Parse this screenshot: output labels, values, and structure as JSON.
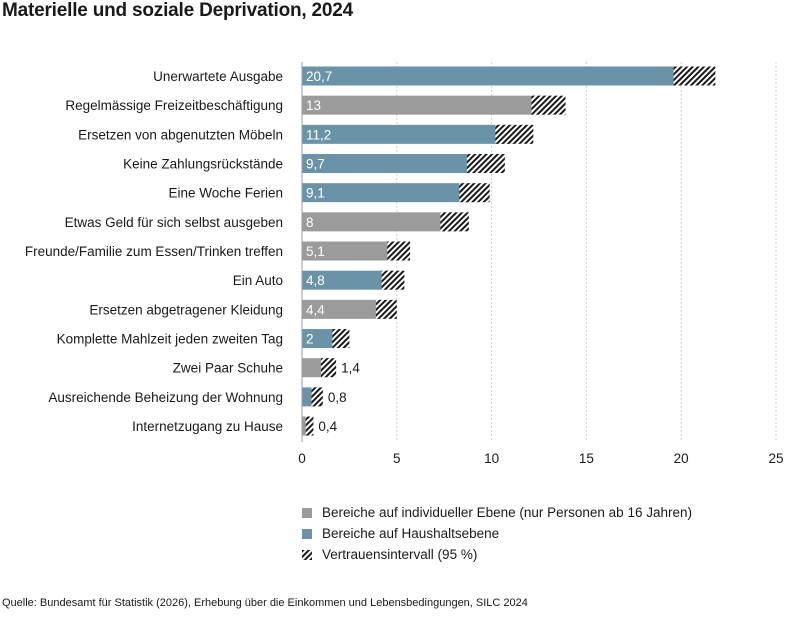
{
  "colors": {
    "individual": "#9b9b9b",
    "household": "#6b93a8",
    "grid": "#d0d0d0",
    "text": "#1a1a1a"
  },
  "legend": {
    "individual": "Bereiche auf individueller Ebene (nur Personen ab 16 Jahren)",
    "household": "Bereiche auf Haushaltsebene",
    "ci": "Vertrauensintervall (95 %)"
  },
  "source": "Quelle: Bundesamt für Statistik (2026), Erhebung über die Einkommen und Lebensbedingungen, SILC 2024",
  "chart_data": {
    "type": "bar",
    "orientation": "horizontal",
    "title": "Materielle und soziale Deprivation, 2024",
    "xlabel": "",
    "ylabel": "",
    "xlim": [
      0,
      25
    ],
    "xticks": [
      0,
      5,
      10,
      15,
      20,
      25
    ],
    "grid": true,
    "legend_position": "bottom",
    "categories": [
      "Unerwartete Ausgabe",
      "Regelmässige Freizeitbeschäftigung",
      "Ersetzen von abgenutzten Möbeln",
      "Keine Zahlungsrückstände",
      "Eine Woche Ferien",
      "Etwas Geld für sich selbst ausgeben",
      "Freunde/Familie zum Essen/Trinken treffen",
      "Ein Auto",
      "Ersetzen abgetragener Kleidung",
      "Komplette Mahlzeit jeden zweiten Tag",
      "Zwei Paar Schuhe",
      "Ausreichende Beheizung der Wohnung",
      "Internetzugang zu Hause"
    ],
    "values": [
      20.7,
      13,
      11.2,
      9.7,
      9.1,
      8,
      5.1,
      4.8,
      4.4,
      2,
      1.4,
      0.8,
      0.4
    ],
    "value_labels": [
      "20,7",
      "13",
      "11,2",
      "9,7",
      "9,1",
      "8",
      "5,1",
      "4,8",
      "4,4",
      "2",
      "1,4",
      "0,8",
      "0,4"
    ],
    "groups": [
      "household",
      "individual",
      "household",
      "household",
      "household",
      "individual",
      "individual",
      "household",
      "individual",
      "household",
      "individual",
      "household",
      "individual"
    ],
    "ci_low": [
      19.6,
      12.1,
      10.2,
      8.7,
      8.3,
      7.3,
      4.5,
      4.2,
      3.9,
      1.6,
      1.0,
      0.5,
      0.2
    ],
    "ci_high": [
      21.8,
      13.9,
      12.2,
      10.7,
      9.9,
      8.8,
      5.7,
      5.4,
      5.0,
      2.5,
      1.8,
      1.1,
      0.6
    ]
  }
}
